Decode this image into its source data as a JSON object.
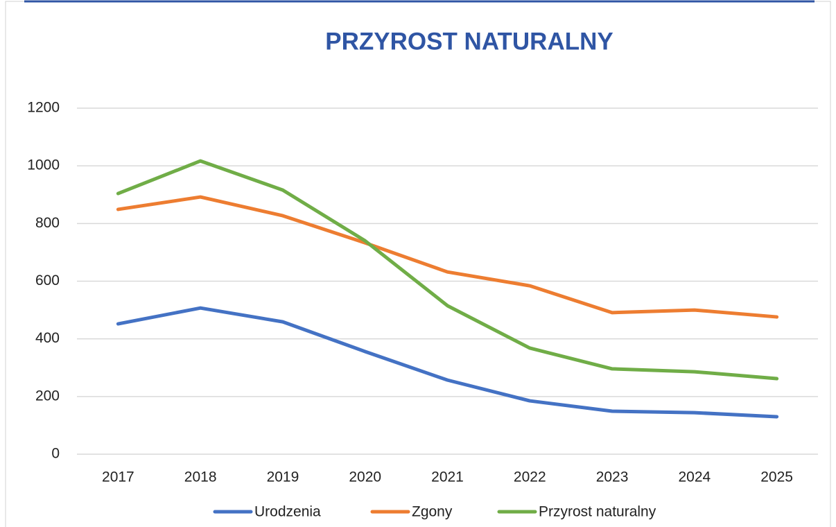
{
  "chart_data": {
    "type": "line",
    "title": "PRZYROST NATURALNY",
    "categories": [
      "2017",
      "2018",
      "2019",
      "2020",
      "2021",
      "2022",
      "2023",
      "2024",
      "2025"
    ],
    "series": [
      {
        "name": "Urodzenia",
        "color": "#4472c4",
        "values": [
          452,
          507,
          459,
          356,
          257,
          185,
          149,
          144,
          130
        ]
      },
      {
        "name": "Zgony",
        "color": "#ed7d31",
        "values": [
          849,
          892,
          827,
          733,
          632,
          584,
          491,
          500,
          476
        ]
      },
      {
        "name": "Przyrost naturalny",
        "color": "#70ad47",
        "values": [
          904,
          1017,
          916,
          740,
          515,
          368,
          296,
          286,
          262
        ]
      }
    ],
    "ylim": [
      0,
      1200
    ],
    "yticks": [
      0,
      200,
      400,
      600,
      800,
      1000,
      1200
    ],
    "grid": true,
    "legend": "bottom"
  }
}
